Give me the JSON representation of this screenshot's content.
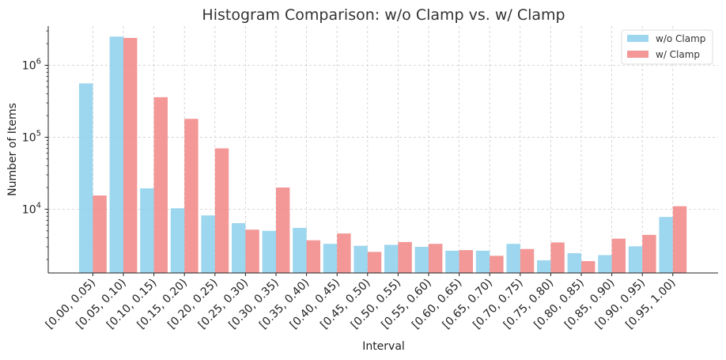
{
  "chart_data": {
    "type": "bar",
    "title": "Histogram Comparison: w/o Clamp vs. w/ Clamp",
    "xlabel": "Interval",
    "ylabel": "Number of Items",
    "yscale": "log",
    "ylim": [
      1300,
      3500000
    ],
    "grid": true,
    "legend_position": "top-right",
    "y_ticks": [
      {
        "value": 10000,
        "base": "10",
        "exp": "4"
      },
      {
        "value": 100000,
        "base": "10",
        "exp": "5"
      },
      {
        "value": 1000000,
        "base": "10",
        "exp": "6"
      }
    ],
    "categories": [
      "[0.00, 0.05)",
      "[0.05, 0.10)",
      "[0.10, 0.15)",
      "[0.15, 0.20)",
      "[0.20, 0.25)",
      "[0.25, 0.30)",
      "[0.30, 0.35)",
      "[0.35, 0.40)",
      "[0.40, 0.45)",
      "[0.45, 0.50)",
      "[0.50, 0.55)",
      "[0.55, 0.60)",
      "[0.60, 0.65)",
      "[0.65, 0.70)",
      "[0.70, 0.75)",
      "[0.75, 0.80)",
      "[0.80, 0.85)",
      "[0.85, 0.90)",
      "[0.90, 0.95)",
      "[0.95, 1.00)"
    ],
    "series": [
      {
        "name": "w/o Clamp",
        "color": "#87CEEB",
        "values": [
          560000,
          2500000,
          19500,
          10300,
          8200,
          6400,
          5000,
          5500,
          3300,
          3100,
          3200,
          3000,
          2650,
          2650,
          3300,
          1950,
          2450,
          2300,
          3050,
          7800
        ]
      },
      {
        "name": "w/ Clamp",
        "color": "#F08080",
        "values": [
          15500,
          2400000,
          360000,
          180000,
          70000,
          5200,
          20000,
          3700,
          4600,
          2550,
          3500,
          3300,
          2700,
          2250,
          2800,
          3450,
          1900,
          3900,
          4400,
          11000
        ]
      }
    ]
  }
}
